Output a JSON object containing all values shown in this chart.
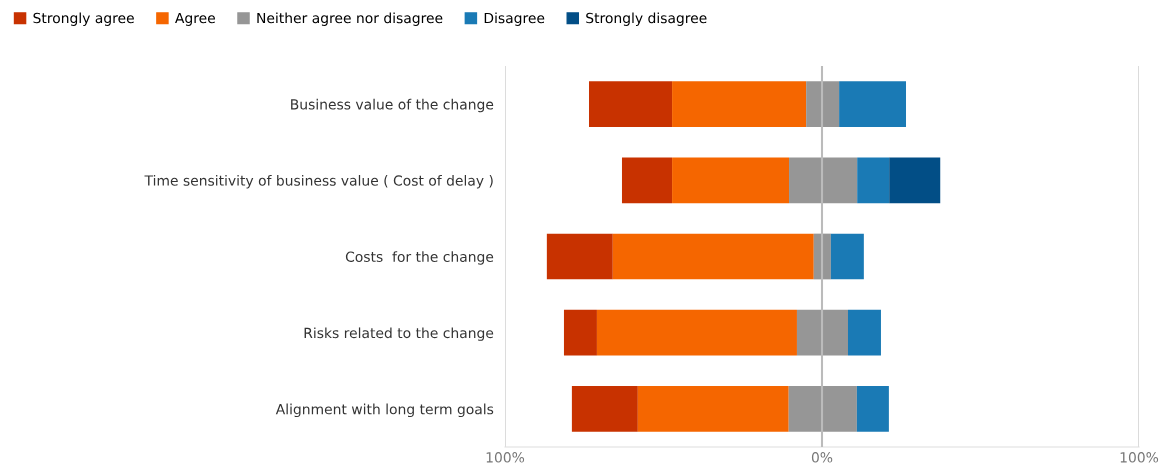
{
  "chart_data": {
    "type": "bar",
    "orientation": "horizontal",
    "categories": [
      "Business value of the change",
      "Time sensitivity of business value ( Cost of delay )",
      "Costs  for the change",
      "Risks related to the change",
      "Alignment with long term goals"
    ],
    "series": [
      {
        "name": "Strongly agree",
        "color": "#c83200",
        "base": [
          -73.5,
          -63.1,
          -86.8,
          -81.4,
          -78.9
        ],
        "values": [
          26.2,
          15.8,
          20.8,
          10.4,
          20.8
        ]
      },
      {
        "name": "Agree",
        "color": "#f56600",
        "base": [
          -47.3,
          -47.3,
          -66.0,
          -71.0,
          -58.1
        ],
        "values": [
          42.3,
          36.9,
          63.4,
          63.1,
          47.6
        ]
      },
      {
        "name": "Neither agree nor disagree",
        "color": "#969696",
        "base": [
          -5.0,
          -10.4,
          -2.6,
          -7.9,
          -10.5
        ],
        "values": [
          10.4,
          21.5,
          5.4,
          16.1,
          21.5
        ]
      },
      {
        "name": "Disagree",
        "color": "#1a7ab5",
        "base": [
          5.4,
          11.1,
          2.8,
          8.2,
          11.0
        ],
        "values": [
          21.1,
          10.1,
          10.4,
          10.4,
          10.1
        ]
      },
      {
        "name": "Strongly disagree",
        "color": "#024e86",
        "base": [
          null,
          21.2,
          null,
          null,
          null
        ],
        "values": [
          null,
          16.1,
          null,
          null,
          null
        ]
      }
    ],
    "xlim": [
      -100,
      100
    ],
    "xticks": [
      {
        "value": -100,
        "label": "100%"
      },
      {
        "value": 0,
        "label": "0%"
      },
      {
        "value": 100,
        "label": "100%"
      }
    ],
    "grid": "x",
    "legend": "top left"
  }
}
